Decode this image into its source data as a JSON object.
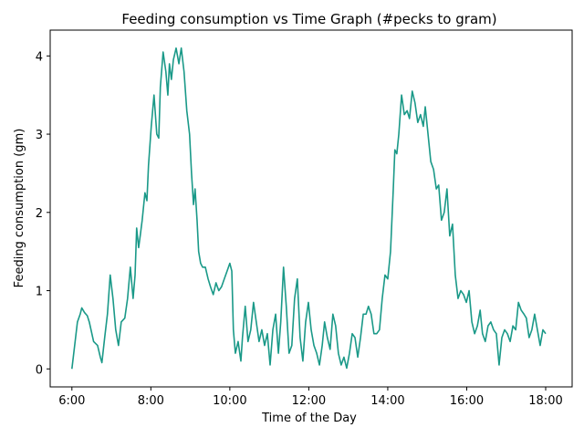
{
  "chart_data": {
    "type": "line",
    "title": "Feeding consumption vs Time Graph (#pecks to gram)",
    "x_label": "Time of the Day",
    "y_label": "Feeding consumption (gm)",
    "color": "#1a9988",
    "grid": false,
    "xlim": [
      5.45,
      18.67
    ],
    "ylim": [
      -0.23,
      4.33
    ],
    "xticks": [
      {
        "value": 6,
        "label": "6:00"
      },
      {
        "value": 8,
        "label": "8:00"
      },
      {
        "value": 10,
        "label": "10:00"
      },
      {
        "value": 12,
        "label": "12:00"
      },
      {
        "value": 14,
        "label": "14:00"
      },
      {
        "value": 16,
        "label": "16:00"
      },
      {
        "value": 18,
        "label": "18:00"
      }
    ],
    "yticks": [
      0,
      1,
      2,
      3,
      4
    ],
    "x": [
      6.0,
      6.07,
      6.14,
      6.21,
      6.25,
      6.32,
      6.39,
      6.44,
      6.55,
      6.65,
      6.72,
      6.76,
      6.83,
      6.9,
      6.97,
      7.04,
      7.11,
      7.18,
      7.25,
      7.34,
      7.41,
      7.48,
      7.55,
      7.6,
      7.64,
      7.69,
      7.73,
      7.78,
      7.85,
      7.9,
      7.94,
      8.01,
      8.08,
      8.15,
      8.2,
      8.24,
      8.31,
      8.38,
      8.43,
      8.47,
      8.52,
      8.57,
      8.64,
      8.71,
      8.77,
      8.84,
      8.91,
      8.98,
      9.03,
      9.08,
      9.12,
      9.17,
      9.21,
      9.26,
      9.31,
      9.38,
      9.45,
      9.51,
      9.58,
      9.65,
      9.72,
      9.79,
      9.86,
      9.93,
      10.0,
      10.05,
      10.09,
      10.14,
      10.21,
      10.28,
      10.32,
      10.39,
      10.46,
      10.53,
      10.6,
      10.67,
      10.74,
      10.81,
      10.88,
      10.95,
      11.02,
      11.09,
      11.16,
      11.23,
      11.29,
      11.36,
      11.43,
      11.5,
      11.57,
      11.64,
      11.71,
      11.78,
      11.85,
      11.92,
      11.99,
      12.06,
      12.13,
      12.2,
      12.27,
      12.34,
      12.4,
      12.47,
      12.54,
      12.61,
      12.68,
      12.75,
      12.82,
      12.89,
      12.96,
      13.03,
      13.1,
      13.17,
      13.24,
      13.31,
      13.38,
      13.45,
      13.51,
      13.58,
      13.65,
      13.72,
      13.79,
      13.86,
      13.93,
      14.0,
      14.07,
      14.14,
      14.18,
      14.23,
      14.28,
      14.35,
      14.42,
      14.49,
      14.55,
      14.62,
      14.69,
      14.76,
      14.83,
      14.9,
      14.95,
      15.02,
      15.09,
      15.16,
      15.23,
      15.29,
      15.36,
      15.43,
      15.5,
      15.57,
      15.64,
      15.71,
      15.78,
      15.85,
      15.92,
      15.99,
      16.06,
      16.13,
      16.2,
      16.27,
      16.34,
      16.4,
      16.47,
      16.54,
      16.61,
      16.68,
      16.75,
      16.82,
      16.89,
      16.96,
      17.03,
      17.1,
      17.17,
      17.24,
      17.31,
      17.38,
      17.45,
      17.51,
      17.58,
      17.65,
      17.72,
      17.79,
      17.86,
      17.93,
      18.0
    ],
    "values": [
      0,
      0.3,
      0.6,
      0.7,
      0.78,
      0.72,
      0.68,
      0.6,
      0.35,
      0.3,
      0.15,
      0.08,
      0.4,
      0.7,
      1.2,
      0.9,
      0.5,
      0.3,
      0.6,
      0.65,
      0.9,
      1.3,
      0.9,
      1.2,
      1.8,
      1.55,
      1.7,
      1.9,
      2.25,
      2.15,
      2.6,
      3.1,
      3.5,
      3.0,
      2.95,
      3.6,
      4.05,
      3.8,
      3.5,
      3.9,
      3.7,
      3.95,
      4.1,
      3.9,
      4.1,
      3.8,
      3.3,
      3.0,
      2.5,
      2.1,
      2.3,
      1.9,
      1.5,
      1.35,
      1.3,
      1.3,
      1.15,
      1.05,
      0.95,
      1.1,
      1.0,
      1.05,
      1.15,
      1.25,
      1.35,
      1.25,
      0.5,
      0.2,
      0.35,
      0.1,
      0.4,
      0.8,
      0.35,
      0.5,
      0.85,
      0.6,
      0.35,
      0.5,
      0.3,
      0.45,
      0.05,
      0.5,
      0.7,
      0.2,
      0.6,
      1.3,
      0.8,
      0.2,
      0.3,
      0.9,
      1.15,
      0.4,
      0.1,
      0.6,
      0.85,
      0.5,
      0.3,
      0.2,
      0.05,
      0.3,
      0.6,
      0.4,
      0.25,
      0.7,
      0.55,
      0.2,
      0.05,
      0.15,
      0.01,
      0.2,
      0.45,
      0.4,
      0.15,
      0.4,
      0.7,
      0.7,
      0.8,
      0.7,
      0.45,
      0.45,
      0.5,
      0.9,
      1.2,
      1.15,
      1.5,
      2.3,
      2.8,
      2.75,
      3.0,
      3.5,
      3.25,
      3.3,
      3.2,
      3.55,
      3.4,
      3.15,
      3.25,
      3.1,
      3.35,
      3.0,
      2.65,
      2.55,
      2.3,
      2.35,
      1.9,
      2.0,
      2.3,
      1.7,
      1.85,
      1.2,
      0.9,
      1.0,
      0.95,
      0.85,
      1.0,
      0.6,
      0.45,
      0.55,
      0.75,
      0.45,
      0.35,
      0.55,
      0.6,
      0.5,
      0.45,
      0.05,
      0.4,
      0.5,
      0.45,
      0.35,
      0.55,
      0.5,
      0.85,
      0.75,
      0.7,
      0.65,
      0.4,
      0.5,
      0.7,
      0.5,
      0.3,
      0.5,
      0.45
    ]
  }
}
